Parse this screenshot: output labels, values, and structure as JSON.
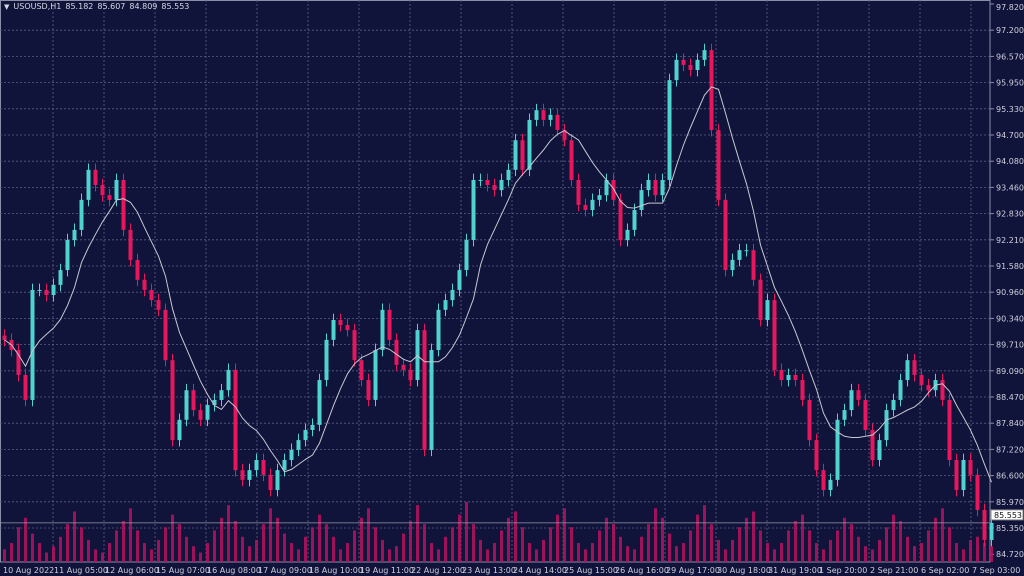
{
  "header": {
    "symbol": "USOUSD,H1",
    "open": "85.182",
    "high": "85.607",
    "low": "84.809",
    "close": "85.553",
    "menu_icon": "triangle-down-icon"
  },
  "colors": {
    "background": "#10133a",
    "bull": "#4fd3d0",
    "bear": "#e8175d",
    "volume": "#b8135f",
    "ma": "#c8c8d0",
    "grid": "#5b5f85",
    "text": "#d0d0dc"
  },
  "chart_data": {
    "type": "candlestick",
    "title": "",
    "symbol": "USOUSD",
    "timeframe": "H1",
    "current_price": "85.553",
    "ylim": [
      84.72,
      97.82
    ],
    "grid": true,
    "y_ticks": [
      "97.820",
      "97.200",
      "96.570",
      "95.950",
      "95.330",
      "94.700",
      "94.080",
      "93.460",
      "92.830",
      "92.210",
      "91.580",
      "90.960",
      "90.340",
      "89.710",
      "89.090",
      "88.470",
      "87.840",
      "87.220",
      "86.600",
      "85.970",
      "85.350",
      "84.720"
    ],
    "x_ticks": [
      "10 Aug 2022",
      "11 Aug 05:00",
      "12 Aug 06:00",
      "15 Aug 07:00",
      "16 Aug 08:00",
      "17 Aug 09:00",
      "18 Aug 10:00",
      "19 Aug 11:00",
      "22 Aug 12:00",
      "23 Aug 13:00",
      "24 Aug 14:00",
      "25 Aug 15:00",
      "26 Aug 16:00",
      "29 Aug 17:00",
      "30 Aug 18:00",
      "31 Aug 19:00",
      "1 Sep 20:00",
      "2 Sep 21:00",
      "6 Sep 02:00",
      "7 Sep 03:00"
    ],
    "closes": [
      89.88,
      89.64,
      89.05,
      88.46,
      91.06,
      91.06,
      90.94,
      91.18,
      91.53,
      92.24,
      92.48,
      93.19,
      93.9,
      93.54,
      93.3,
      93.19,
      93.66,
      92.48,
      91.77,
      91.3,
      91.06,
      90.82,
      90.59,
      89.4,
      87.51,
      87.99,
      88.69,
      88.22,
      87.99,
      88.34,
      88.46,
      88.69,
      89.17,
      86.8,
      86.57,
      86.8,
      87.04,
      86.69,
      86.33,
      86.8,
      87.04,
      87.28,
      87.51,
      87.75,
      87.87,
      88.93,
      89.88,
      90.35,
      90.23,
      90.11,
      89.4,
      88.93,
      88.46,
      89.64,
      90.59,
      89.88,
      89.29,
      89.17,
      88.93,
      90.11,
      87.28,
      89.64,
      90.59,
      90.82,
      91.06,
      91.53,
      92.24,
      93.66,
      93.66,
      93.54,
      93.42,
      93.66,
      93.9,
      94.6,
      93.9,
      95.08,
      95.31,
      95.08,
      95.2,
      94.84,
      94.6,
      93.66,
      93.07,
      92.95,
      93.19,
      93.3,
      93.66,
      93.19,
      92.24,
      92.48,
      92.95,
      93.42,
      93.66,
      93.3,
      93.66,
      96.02,
      96.5,
      96.38,
      96.26,
      96.5,
      96.73,
      94.84,
      93.19,
      91.53,
      91.77,
      92.0,
      92.0,
      91.3,
      90.35,
      90.82,
      89.17,
      88.93,
      89.05,
      88.93,
      88.46,
      87.51,
      86.8,
      86.33,
      86.57,
      87.99,
      88.22,
      88.69,
      88.46,
      87.75,
      87.04,
      87.51,
      88.22,
      88.46,
      88.93,
      89.4,
      89.05,
      88.81,
      88.69,
      88.93,
      88.46,
      87.04,
      86.33,
      87.04,
      86.69,
      85.86,
      85.15,
      85.553
    ],
    "volumes": [
      20,
      30,
      55,
      70,
      45,
      30,
      15,
      25,
      40,
      60,
      80,
      55,
      35,
      20,
      15,
      30,
      50,
      65,
      85,
      50,
      30,
      20,
      35,
      55,
      75,
      60,
      40,
      25,
      15,
      30,
      50,
      70,
      90,
      65,
      40,
      25,
      35,
      60,
      85,
      70,
      45,
      30,
      20,
      40,
      55,
      75,
      60,
      40,
      20,
      30,
      50,
      70,
      85,
      55,
      35,
      20,
      25,
      45,
      65,
      90,
      60,
      30,
      20,
      40,
      55,
      75,
      95,
      60,
      35,
      20,
      30,
      50,
      70,
      80,
      55,
      30,
      20,
      35,
      55,
      75,
      85,
      55,
      30,
      20,
      30,
      50,
      70,
      60,
      40,
      25,
      20,
      40,
      60,
      85,
      70,
      45,
      25,
      30,
      50,
      75,
      90,
      60,
      35,
      20,
      35,
      55,
      70,
      80,
      50,
      30,
      20,
      30,
      50,
      65,
      75,
      50,
      30,
      20,
      35,
      50,
      70,
      60,
      40,
      25,
      20,
      35,
      55,
      75,
      65,
      40,
      25,
      30,
      50,
      70,
      85,
      55,
      30,
      20,
      35,
      40,
      30,
      25
    ]
  }
}
